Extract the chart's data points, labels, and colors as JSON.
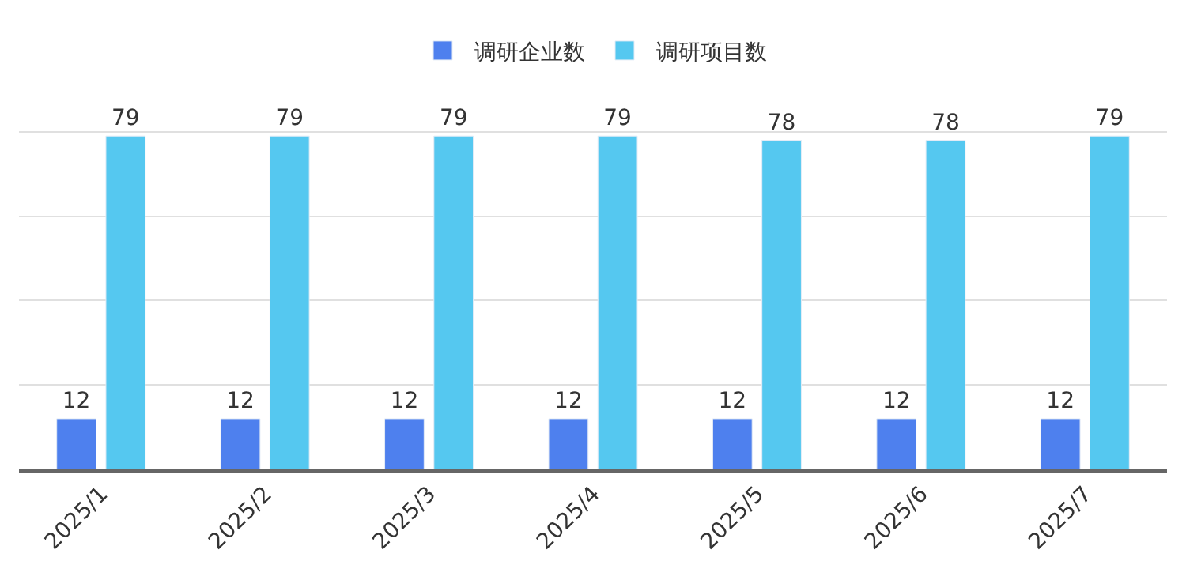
{
  "chart_data": {
    "type": "bar",
    "categories": [
      "2025/1",
      "2025/2",
      "2025/3",
      "2025/4",
      "2025/5",
      "2025/6",
      "2025/7"
    ],
    "series": [
      {
        "name": "调研企业数",
        "color": "#4e80ee",
        "values": [
          12,
          12,
          12,
          12,
          12,
          12,
          12
        ]
      },
      {
        "name": "调研项目数",
        "color": "#55c8f0",
        "values": [
          79,
          79,
          79,
          79,
          78,
          78,
          79
        ]
      }
    ],
    "yticks": [
      {
        "value": 0,
        "label": null
      },
      {
        "value": 20,
        "label": null
      },
      {
        "value": 40,
        "label": null
      },
      {
        "value": 60,
        "label": null
      },
      {
        "value": 80,
        "label": null
      }
    ],
    "tick_labels": "x",
    "grid": "y",
    "legend": "top",
    "data_labels": true
  }
}
